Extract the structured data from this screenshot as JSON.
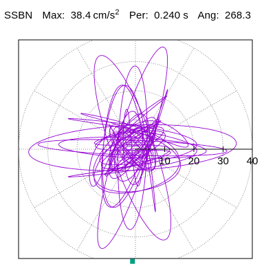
{
  "header": {
    "station": "SSBN",
    "max_label": "Max:",
    "max_value": "38.4",
    "max_unit": "cm/s",
    "max_unit_exp": "2",
    "per_label": "Per:",
    "per_value": "0.240 s",
    "ang_label": "Ang:",
    "ang_value": "268.3"
  },
  "chart_data": {
    "type": "polar-particle-motion",
    "radial_axis": {
      "ticks": [
        10,
        20,
        30,
        40
      ],
      "tick_labels": [
        "10",
        "20",
        "30",
        "40"
      ],
      "range": [
        0,
        40
      ],
      "angular_grid_deg": 30,
      "grid": "dotted"
    },
    "trace_color": "#9400d3",
    "marker": {
      "color": "#00a080",
      "x": -1,
      "y": -38.4
    },
    "trace_envelope": {
      "max_amplitude": 38.4,
      "angle_deg": 268.3
    }
  }
}
